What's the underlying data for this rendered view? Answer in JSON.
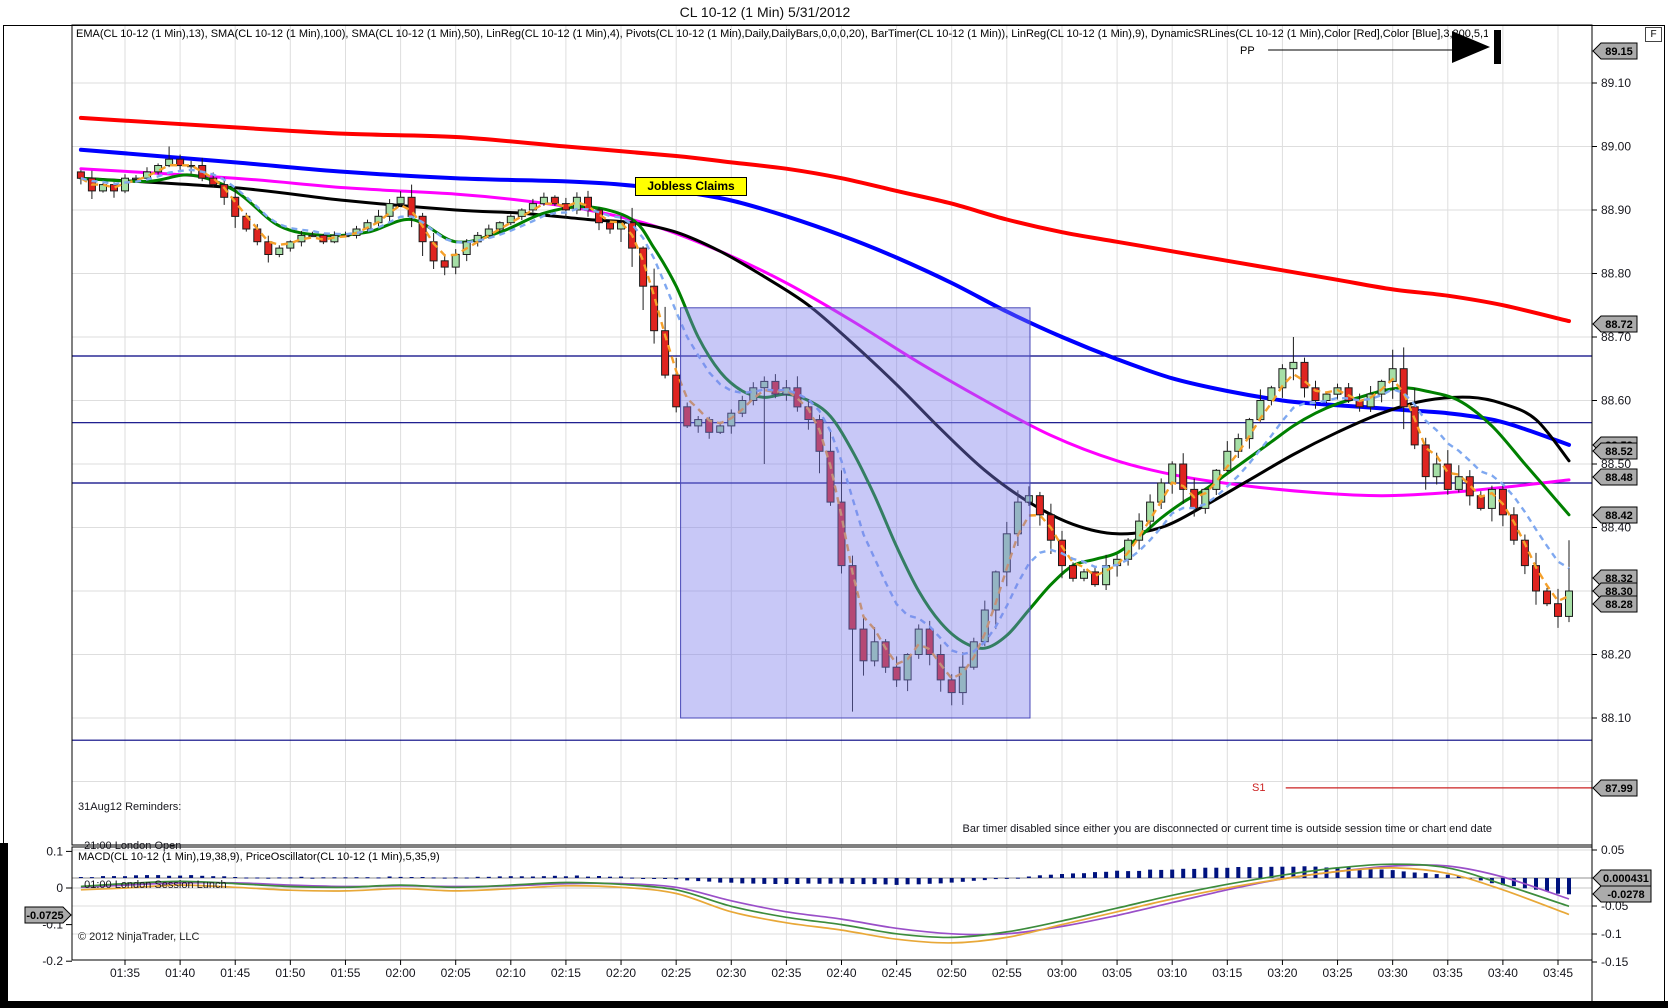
{
  "window": {
    "f_button": "F"
  },
  "chart": {
    "title": "CL 10-12 (1 Min)  5/31/2012",
    "main_indicator_line": "EMA(CL 10-12 (1 Min),13), SMA(CL 10-12 (1 Min),100), SMA(CL 10-12 (1 Min),50), LinReg(CL 10-12 (1 Min),4), Pivots(CL 10-12 (1 Min),Daily,DailyBars,0,0,0,20), BarTimer(CL 10-12 (1 Min)), LinReg(CL 10-12 (1 Min),9), DynamicSRLines(CL 10-12 (1 Min),Color [Red],Color [Blue],3,200,5,10,2), SMA(CL 10-12",
    "macd_indicator_line": "MACD(CL 10-12 (1 Min),19,38,9), PriceOscillator(CL 10-12 (1 Min),5,35,9)",
    "copyright": "© 2012 NinjaTrader, LLC",
    "bar_timer_notice": "Bar timer disabled since either you are disconnected or current time is outside session time or chart end date",
    "reminders": [
      "31Aug12 Reminders:",
      "  21:00 London Open",
      "  01:00 London Session Lunch"
    ],
    "news_label": "Jobless Claims",
    "pivot_labels": {
      "pp": "PP",
      "s1": "S1"
    }
  },
  "chart_data": {
    "type": "candlestick",
    "symbol": "CL 10-12",
    "interval": "1 Min",
    "date": "5/31/2012",
    "x_axis": {
      "labels": [
        "01:35",
        "01:40",
        "01:45",
        "01:50",
        "01:55",
        "02:00",
        "02:05",
        "02:10",
        "02:15",
        "02:20",
        "02:25",
        "02:30",
        "02:35",
        "02:40",
        "02:45",
        "02:50",
        "02:55",
        "03:00",
        "03:05",
        "03:10",
        "03:15",
        "03:20",
        "03:25",
        "03:30",
        "03:35",
        "03:40",
        "03:45"
      ],
      "minutes_per_label": 5
    },
    "y_axis_main": {
      "ticks": [
        89.1,
        89.0,
        88.9,
        88.8,
        88.7,
        88.6,
        88.5,
        88.4,
        88.3,
        88.2,
        88.1
      ],
      "grid_extra": [
        88.0
      ],
      "range": [
        87.92,
        89.17
      ]
    },
    "price_tags": [
      89.15,
      88.72,
      88.53,
      88.52,
      88.48,
      88.42,
      88.32,
      88.3,
      88.28,
      87.99
    ],
    "pivots": {
      "PP": {
        "price": 89.152,
        "label_t": 101.5,
        "from_t": 103.7,
        "to_t": 120.5
      },
      "S1": {
        "price": 87.99,
        "label_t": 102.5,
        "from_t": 105.3
      }
    },
    "sr_lines": [
      88.67,
      88.565,
      88.47,
      88.065
    ],
    "highlight_region": {
      "t0": 50.4,
      "t1": 82.1,
      "price_top": 88.746,
      "price_bottom": 88.1
    },
    "news_event": {
      "t": 51,
      "price": 88.935
    },
    "candles": {
      "start_offset_min": -4,
      "closes": [
        88.95,
        88.93,
        88.94,
        88.93,
        88.95,
        88.95,
        88.96,
        88.97,
        88.98,
        88.97,
        88.97,
        88.95,
        88.94,
        88.92,
        88.89,
        88.87,
        88.85,
        88.83,
        88.84,
        88.85,
        88.86,
        88.86,
        88.85,
        88.86,
        88.86,
        88.87,
        88.88,
        88.89,
        88.91,
        88.92,
        88.89,
        88.85,
        88.82,
        88.81,
        88.83,
        88.85,
        88.86,
        88.87,
        88.88,
        88.89,
        88.9,
        88.91,
        88.92,
        88.91,
        88.9,
        88.92,
        88.9,
        88.88,
        88.87,
        88.88,
        88.84,
        88.78,
        88.71,
        88.64,
        88.59,
        88.56,
        88.57,
        88.55,
        88.56,
        88.58,
        88.6,
        88.62,
        88.63,
        88.61,
        88.62,
        88.59,
        88.57,
        88.52,
        88.44,
        88.34,
        88.24,
        88.19,
        88.22,
        88.18,
        88.16,
        88.2,
        88.24,
        88.2,
        88.16,
        88.14,
        88.18,
        88.22,
        88.27,
        88.33,
        88.39,
        88.44,
        88.45,
        88.42,
        88.38,
        88.34,
        88.32,
        88.33,
        88.31,
        88.34,
        88.35,
        88.38,
        88.41,
        88.44,
        88.47,
        88.5,
        88.46,
        88.43,
        88.46,
        88.49,
        88.52,
        88.54,
        88.57,
        88.6,
        88.62,
        88.65,
        88.66,
        88.62,
        88.6,
        88.61,
        88.62,
        88.6,
        88.59,
        88.61,
        88.63,
        88.65,
        88.59,
        88.53,
        88.48,
        88.5,
        88.46,
        88.48,
        88.45,
        88.43,
        88.46,
        88.42,
        88.38,
        88.34,
        88.3,
        88.28,
        88.26,
        88.3
      ],
      "overrides": {
        "8": {
          "high": 89.0
        },
        "30": {
          "high": 88.94
        },
        "62": {
          "low": 88.5
        },
        "70": {
          "low": 88.11
        },
        "79": {
          "low": 88.12
        },
        "110": {
          "high": 88.7
        },
        "119": {
          "high": 88.68
        },
        "135": {
          "high": 88.38
        }
      }
    },
    "ma_lines": [
      {
        "name": "sma-100",
        "color": "#FF0000",
        "width": 4,
        "points": [
          [
            -4,
            89.045
          ],
          [
            10,
            89.03
          ],
          [
            20,
            89.02
          ],
          [
            30,
            89.015
          ],
          [
            40,
            89.0
          ],
          [
            50,
            88.985
          ],
          [
            55,
            88.975
          ],
          [
            60,
            88.965
          ],
          [
            65,
            88.95
          ],
          [
            70,
            88.93
          ],
          [
            75,
            88.91
          ],
          [
            80,
            88.885
          ],
          [
            85,
            88.865
          ],
          [
            90,
            88.85
          ],
          [
            95,
            88.835
          ],
          [
            100,
            88.82
          ],
          [
            105,
            88.805
          ],
          [
            110,
            88.79
          ],
          [
            115,
            88.775
          ],
          [
            120,
            88.765
          ],
          [
            125,
            88.75
          ],
          [
            131,
            88.725
          ]
        ]
      },
      {
        "name": "sma-50",
        "color": "#0000FF",
        "width": 4,
        "points": [
          [
            -4,
            88.995
          ],
          [
            10,
            88.975
          ],
          [
            20,
            88.96
          ],
          [
            30,
            88.95
          ],
          [
            40,
            88.945
          ],
          [
            45,
            88.94
          ],
          [
            50,
            88.93
          ],
          [
            55,
            88.915
          ],
          [
            60,
            88.89
          ],
          [
            65,
            88.86
          ],
          [
            70,
            88.825
          ],
          [
            75,
            88.785
          ],
          [
            80,
            88.74
          ],
          [
            85,
            88.7
          ],
          [
            90,
            88.665
          ],
          [
            95,
            88.635
          ],
          [
            100,
            88.615
          ],
          [
            105,
            88.6
          ],
          [
            108,
            88.595
          ],
          [
            112,
            88.59
          ],
          [
            116,
            88.585
          ],
          [
            120,
            88.58
          ],
          [
            124,
            88.57
          ],
          [
            127,
            88.555
          ],
          [
            131,
            88.53
          ]
        ]
      },
      {
        "name": "sma-magenta",
        "color": "#FF00FF",
        "width": 3,
        "points": [
          [
            -4,
            88.965
          ],
          [
            10,
            88.95
          ],
          [
            20,
            88.935
          ],
          [
            30,
            88.925
          ],
          [
            36,
            88.915
          ],
          [
            42,
            88.9
          ],
          [
            48,
            88.875
          ],
          [
            54,
            88.835
          ],
          [
            60,
            88.785
          ],
          [
            66,
            88.725
          ],
          [
            72,
            88.66
          ],
          [
            78,
            88.6
          ],
          [
            84,
            88.545
          ],
          [
            90,
            88.505
          ],
          [
            96,
            88.48
          ],
          [
            102,
            88.465
          ],
          [
            108,
            88.455
          ],
          [
            114,
            88.45
          ],
          [
            120,
            88.455
          ],
          [
            126,
            88.465
          ],
          [
            131,
            88.475
          ]
        ]
      },
      {
        "name": "sma-black",
        "color": "#000000",
        "width": 3,
        "points": [
          [
            -4,
            88.95
          ],
          [
            10,
            88.935
          ],
          [
            20,
            88.915
          ],
          [
            30,
            88.9
          ],
          [
            36,
            88.895
          ],
          [
            42,
            88.885
          ],
          [
            46,
            88.88
          ],
          [
            50,
            88.865
          ],
          [
            54,
            88.835
          ],
          [
            58,
            88.795
          ],
          [
            62,
            88.75
          ],
          [
            66,
            88.69
          ],
          [
            70,
            88.625
          ],
          [
            74,
            88.555
          ],
          [
            78,
            88.49
          ],
          [
            82,
            88.44
          ],
          [
            86,
            88.405
          ],
          [
            90,
            88.39
          ],
          [
            94,
            88.4
          ],
          [
            98,
            88.435
          ],
          [
            102,
            88.475
          ],
          [
            106,
            88.515
          ],
          [
            110,
            88.55
          ],
          [
            114,
            88.58
          ],
          [
            118,
            88.6
          ],
          [
            122,
            88.605
          ],
          [
            125,
            88.595
          ],
          [
            128,
            88.57
          ],
          [
            131,
            88.505
          ]
        ]
      },
      {
        "name": "ema-13",
        "color": "#008000",
        "width": 3,
        "points": [
          [
            -4,
            88.95
          ],
          [
            2,
            88.945
          ],
          [
            6,
            88.955
          ],
          [
            10,
            88.93
          ],
          [
            14,
            88.875
          ],
          [
            18,
            88.86
          ],
          [
            22,
            88.865
          ],
          [
            26,
            88.885
          ],
          [
            30,
            88.85
          ],
          [
            34,
            88.865
          ],
          [
            38,
            88.895
          ],
          [
            42,
            88.905
          ],
          [
            46,
            88.885
          ],
          [
            48,
            88.84
          ],
          [
            50,
            88.78
          ],
          [
            52,
            88.7
          ],
          [
            54,
            88.645
          ],
          [
            56,
            88.615
          ],
          [
            58,
            88.605
          ],
          [
            60,
            88.61
          ],
          [
            62,
            88.6
          ],
          [
            64,
            88.575
          ],
          [
            66,
            88.52
          ],
          [
            68,
            88.45
          ],
          [
            70,
            88.37
          ],
          [
            72,
            88.3
          ],
          [
            74,
            88.25
          ],
          [
            76,
            88.22
          ],
          [
            78,
            88.21
          ],
          [
            80,
            88.23
          ],
          [
            82,
            88.27
          ],
          [
            84,
            88.31
          ],
          [
            86,
            88.34
          ],
          [
            88,
            88.35
          ],
          [
            90,
            88.36
          ],
          [
            92,
            88.385
          ],
          [
            94,
            88.415
          ],
          [
            96,
            88.44
          ],
          [
            98,
            88.46
          ],
          [
            100,
            88.485
          ],
          [
            102,
            88.51
          ],
          [
            104,
            88.535
          ],
          [
            106,
            88.56
          ],
          [
            108,
            88.58
          ],
          [
            110,
            88.595
          ],
          [
            112,
            88.605
          ],
          [
            114,
            88.615
          ],
          [
            116,
            88.62
          ],
          [
            118,
            88.615
          ],
          [
            121,
            88.6
          ],
          [
            124,
            88.56
          ],
          [
            127,
            88.5
          ],
          [
            129,
            88.46
          ],
          [
            131,
            88.42
          ]
        ]
      }
    ],
    "linreg_fast": {
      "name": "linreg-4",
      "color": "#F5A02A",
      "span": 3,
      "dash": "7 5",
      "width": 2.4
    },
    "linreg_slow": {
      "name": "linreg-9",
      "color": "#7FA8F0",
      "span": 8,
      "dash": "6 5",
      "width": 2.4
    },
    "lower_panel": {
      "left_ticks": [
        {
          "v": 0.1,
          "label": "0.1"
        },
        {
          "v": 0,
          "label": "0"
        },
        {
          "v": -0.1,
          "label": "-0.1"
        },
        {
          "v": -0.2,
          "label": "-0.2"
        }
      ],
      "right_ticks": [
        {
          "v": 0.05,
          "label": "0.05"
        },
        {
          "v": -0.05,
          "label": "-0.05"
        },
        {
          "v": -0.1,
          "label": "-0.1"
        },
        {
          "v": -0.15,
          "label": "-0.15"
        }
      ],
      "left_tag": {
        "value": -0.0725,
        "label": "-0.0725"
      },
      "right_tags": [
        {
          "value": 0.000431,
          "label": "0.000431"
        },
        {
          "value": -0.0278,
          "label": "-0.0278"
        }
      ],
      "t_samples": [
        -4,
        0,
        5,
        10,
        15,
        20,
        25,
        30,
        35,
        40,
        45,
        50,
        55,
        60,
        65,
        70,
        75,
        80,
        85,
        90,
        95,
        100,
        105,
        110,
        115,
        120,
        125,
        131
      ],
      "lines": [
        {
          "name": "macd-avg",
          "color": "#9A4FC8",
          "width": 1.7,
          "values": [
            0.002,
            0.008,
            0.014,
            0.014,
            0.008,
            0.004,
            0.006,
            0.004,
            0.006,
            0.012,
            0.012,
            0.002,
            -0.035,
            -0.065,
            -0.085,
            -0.11,
            -0.125,
            -0.125,
            -0.105,
            -0.075,
            -0.04,
            -0.005,
            0.025,
            0.045,
            0.06,
            0.06,
            0.03,
            -0.03
          ]
        },
        {
          "name": "macd",
          "color": "#3C8C3C",
          "width": 1.7,
          "values": [
            0.004,
            0.012,
            0.018,
            0.012,
            0.004,
            0.002,
            0.008,
            0.002,
            0.008,
            0.015,
            0.01,
            -0.005,
            -0.05,
            -0.08,
            -0.1,
            -0.125,
            -0.135,
            -0.12,
            -0.09,
            -0.055,
            -0.02,
            0.01,
            0.035,
            0.055,
            0.065,
            0.055,
            0.01,
            -0.05
          ]
        },
        {
          "name": "price-oscillator",
          "color": "#E8A838",
          "width": 1.7,
          "values": [
            -0.005,
            0.0,
            0.008,
            0.002,
            -0.006,
            -0.008,
            -0.002,
            -0.008,
            -0.002,
            0.006,
            0.002,
            -0.015,
            -0.065,
            -0.095,
            -0.115,
            -0.14,
            -0.15,
            -0.135,
            -0.1,
            -0.065,
            -0.03,
            0.0,
            0.025,
            0.045,
            0.055,
            0.04,
            -0.005,
            -0.0725
          ]
        }
      ],
      "histogram": {
        "name": "macd-histogram",
        "color": "#00127E",
        "values": [
          0.002,
          0.004,
          0.005,
          0.002,
          0.001,
          0.002,
          0.002,
          0.001,
          0.003,
          0.004,
          0.002,
          -0.003,
          -0.009,
          -0.011,
          -0.01,
          -0.012,
          -0.008,
          0.0,
          0.007,
          0.012,
          0.016,
          0.019,
          0.021,
          0.019,
          0.014,
          0.006,
          -0.012,
          -0.03
        ]
      }
    },
    "colors": {
      "candle_up": "#A6DFA6",
      "candle_down": "#DF2420",
      "tag_bg": "#ABABAB",
      "grid": "#DEDEDE",
      "sr_line": "#000080",
      "zero_line": "#909090"
    }
  }
}
